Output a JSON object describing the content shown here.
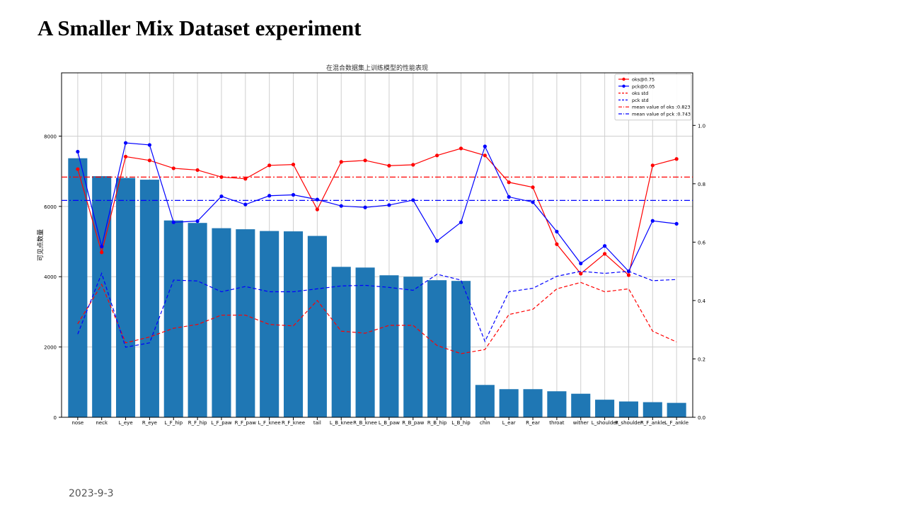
{
  "page": {
    "title": "A Smaller Mix Dataset experiment",
    "date": "2023-9-3"
  },
  "chart_data": {
    "type": "bar",
    "title": "在混合数据集上训练模型的性能表现",
    "ylabel": "可见点数量",
    "ylabel_right": "",
    "ylim": [
      0,
      9800
    ],
    "y2lim": [
      0,
      1.18
    ],
    "yticks": [
      0,
      2000,
      4000,
      6000,
      8000
    ],
    "y2ticks": [
      0.0,
      0.2,
      0.4,
      0.6,
      0.8,
      1.0
    ],
    "grid": true,
    "legend_position": "top-right",
    "bar_color": "#1f77b4",
    "categories": [
      "nose",
      "neck",
      "L_eye",
      "R_eye",
      "L_F_hip",
      "R_F_hip",
      "L_F_paw",
      "R_F_paw",
      "L_F_knee",
      "R_F_knee",
      "tail",
      "L_B_knee",
      "R_B_knee",
      "L_B_paw",
      "R_B_paw",
      "R_B_hip",
      "L_B_hip",
      "chin",
      "L_ear",
      "R_ear",
      "throat",
      "wither",
      "L_shoulder",
      "R_shoulder",
      "R_F_ankle",
      "L_F_ankle"
    ],
    "bars": [
      7370,
      6860,
      6810,
      6760,
      5600,
      5530,
      5380,
      5350,
      5300,
      5290,
      5160,
      4280,
      4260,
      4040,
      4000,
      3900,
      3880,
      920,
      800,
      800,
      740,
      670,
      500,
      450,
      430,
      410
    ],
    "series": [
      {
        "name": "oks@0.75",
        "axis": "right",
        "style": "solid",
        "marker": true,
        "color": "#ff0000",
        "values": [
          0.85,
          0.565,
          0.893,
          0.88,
          0.853,
          0.847,
          0.823,
          0.817,
          0.863,
          0.866,
          0.712,
          0.875,
          0.88,
          0.862,
          0.865,
          0.897,
          0.921,
          0.897,
          0.805,
          0.788,
          0.593,
          0.492,
          0.56,
          0.487,
          0.863,
          0.885
        ]
      },
      {
        "name": "pck@0.05",
        "axis": "right",
        "style": "solid",
        "marker": true,
        "color": "#0000ff",
        "values": [
          0.91,
          0.585,
          0.94,
          0.933,
          0.668,
          0.672,
          0.757,
          0.729,
          0.759,
          0.762,
          0.746,
          0.724,
          0.719,
          0.727,
          0.744,
          0.604,
          0.668,
          0.928,
          0.755,
          0.737,
          0.636,
          0.527,
          0.587,
          0.5,
          0.673,
          0.663
        ]
      },
      {
        "name": "oks std",
        "axis": "right",
        "style": "dashed",
        "marker": false,
        "color": "#ff0000",
        "values": [
          0.32,
          0.455,
          0.255,
          0.275,
          0.305,
          0.318,
          0.35,
          0.35,
          0.318,
          0.313,
          0.4,
          0.295,
          0.288,
          0.315,
          0.315,
          0.246,
          0.218,
          0.232,
          0.352,
          0.37,
          0.44,
          0.462,
          0.43,
          0.44,
          0.295,
          0.258
        ]
      },
      {
        "name": "pck std",
        "axis": "right",
        "style": "dashed",
        "marker": false,
        "color": "#0000ff",
        "values": [
          0.285,
          0.493,
          0.24,
          0.255,
          0.47,
          0.467,
          0.43,
          0.448,
          0.43,
          0.43,
          0.44,
          0.45,
          0.452,
          0.445,
          0.435,
          0.49,
          0.47,
          0.26,
          0.43,
          0.442,
          0.483,
          0.5,
          0.493,
          0.5,
          0.468,
          0.472
        ]
      },
      {
        "name": "mean value of oks :0.823",
        "axis": "right",
        "style": "dashdot",
        "marker": false,
        "color": "#ff0000",
        "value": 0.823
      },
      {
        "name": "mean value of pck :0.743",
        "axis": "right",
        "style": "dashdot",
        "marker": false,
        "color": "#0000ff",
        "value": 0.743
      }
    ]
  }
}
